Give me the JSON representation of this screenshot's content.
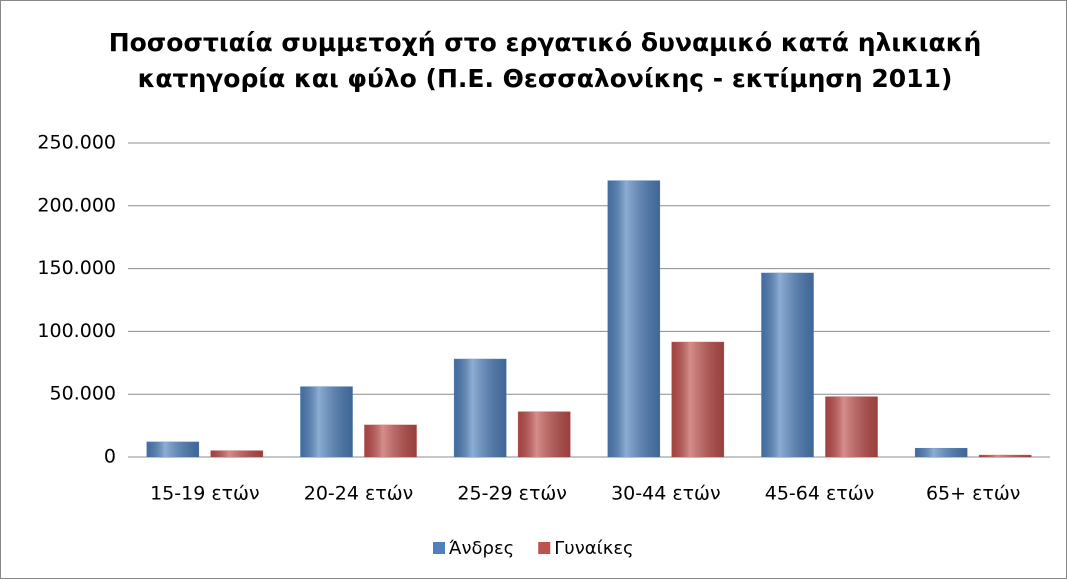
{
  "chart_data": {
    "type": "bar",
    "title": [
      "Ποσοστιαία συμμετοχή στο εργατικό δυναμικό κατά ηλικιακή",
      "κατηγορία και φύλο (Π.Ε. Θεσσαλονίκης - εκτίμηση 2011)"
    ],
    "categories": [
      "15-19 ετών",
      "20-24 ετών",
      "25-29 ετών",
      "30-44 ετών",
      "45-64 ετών",
      "65+ ετών"
    ],
    "series": [
      {
        "name": "Άνδρες",
        "color": "#4f81bd",
        "values": [
          12000,
          56000,
          78000,
          220000,
          146500,
          7000
        ]
      },
      {
        "name": "Γυναίκες",
        "color": "#c0504d",
        "values": [
          5000,
          25500,
          36000,
          91500,
          48000,
          1500
        ]
      }
    ],
    "ylim": [
      0,
      250000
    ],
    "yticks": [
      0,
      {
        "value": 50000,
        "label": "50.000"
      },
      {
        "value": 100000,
        "label": "100.000"
      },
      {
        "value": 150000,
        "label": "150.000"
      },
      {
        "value": 200000,
        "label": "200.000"
      },
      {
        "value": 250000,
        "label": "250.000"
      }
    ],
    "grid": true,
    "legend": "bottom"
  }
}
